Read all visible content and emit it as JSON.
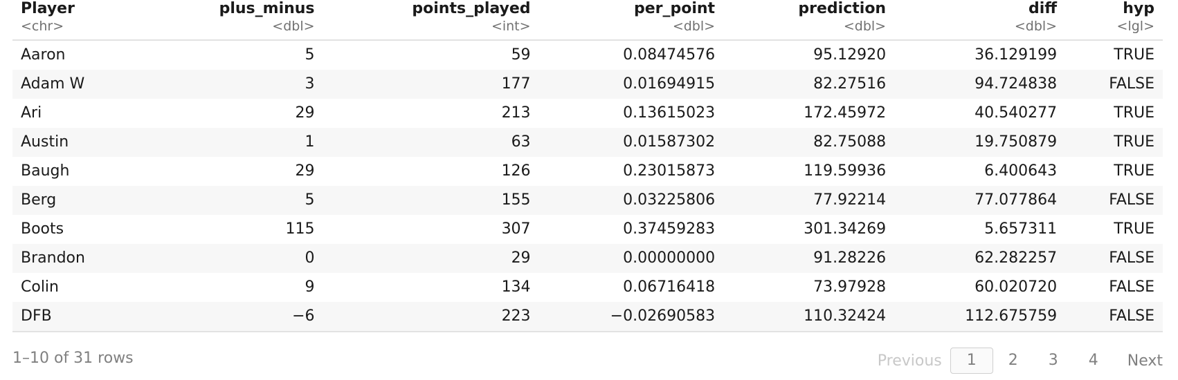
{
  "table": {
    "columns": [
      {
        "name": "Player",
        "type": "<chr>",
        "align": "left"
      },
      {
        "name": "plus_minus",
        "type": "<dbl>",
        "align": "right"
      },
      {
        "name": "points_played",
        "type": "<int>",
        "align": "right"
      },
      {
        "name": "per_point",
        "type": "<dbl>",
        "align": "right"
      },
      {
        "name": "prediction",
        "type": "<dbl>",
        "align": "right"
      },
      {
        "name": "diff",
        "type": "<dbl>",
        "align": "right"
      },
      {
        "name": "hyp",
        "type": "<lgl>",
        "align": "right"
      }
    ],
    "rows": [
      [
        "Aaron",
        "5",
        "59",
        "0.08474576",
        "95.12920",
        "36.129199",
        "TRUE"
      ],
      [
        "Adam W",
        "3",
        "177",
        "0.01694915",
        "82.27516",
        "94.724838",
        "FALSE"
      ],
      [
        "Ari",
        "29",
        "213",
        "0.13615023",
        "172.45972",
        "40.540277",
        "TRUE"
      ],
      [
        "Austin",
        "1",
        "63",
        "0.01587302",
        "82.75088",
        "19.750879",
        "TRUE"
      ],
      [
        "Baugh",
        "29",
        "126",
        "0.23015873",
        "119.59936",
        "6.400643",
        "TRUE"
      ],
      [
        "Berg",
        "5",
        "155",
        "0.03225806",
        "77.92214",
        "77.077864",
        "FALSE"
      ],
      [
        "Boots",
        "115",
        "307",
        "0.37459283",
        "301.34269",
        "5.657311",
        "TRUE"
      ],
      [
        "Brandon",
        "0",
        "29",
        "0.00000000",
        "91.28226",
        "62.282257",
        "FALSE"
      ],
      [
        "Colin",
        "9",
        "134",
        "0.06716418",
        "73.97928",
        "60.020720",
        "FALSE"
      ],
      [
        "DFB",
        "-6",
        "223",
        "-0.02690583",
        "110.32424",
        "112.675759",
        "FALSE"
      ]
    ]
  },
  "footer": {
    "row_info": "1–10 of 31 rows",
    "previous_label": "Previous",
    "pages": [
      "1",
      "2",
      "3",
      "4"
    ],
    "current_page": "1",
    "next_label": "Next"
  }
}
